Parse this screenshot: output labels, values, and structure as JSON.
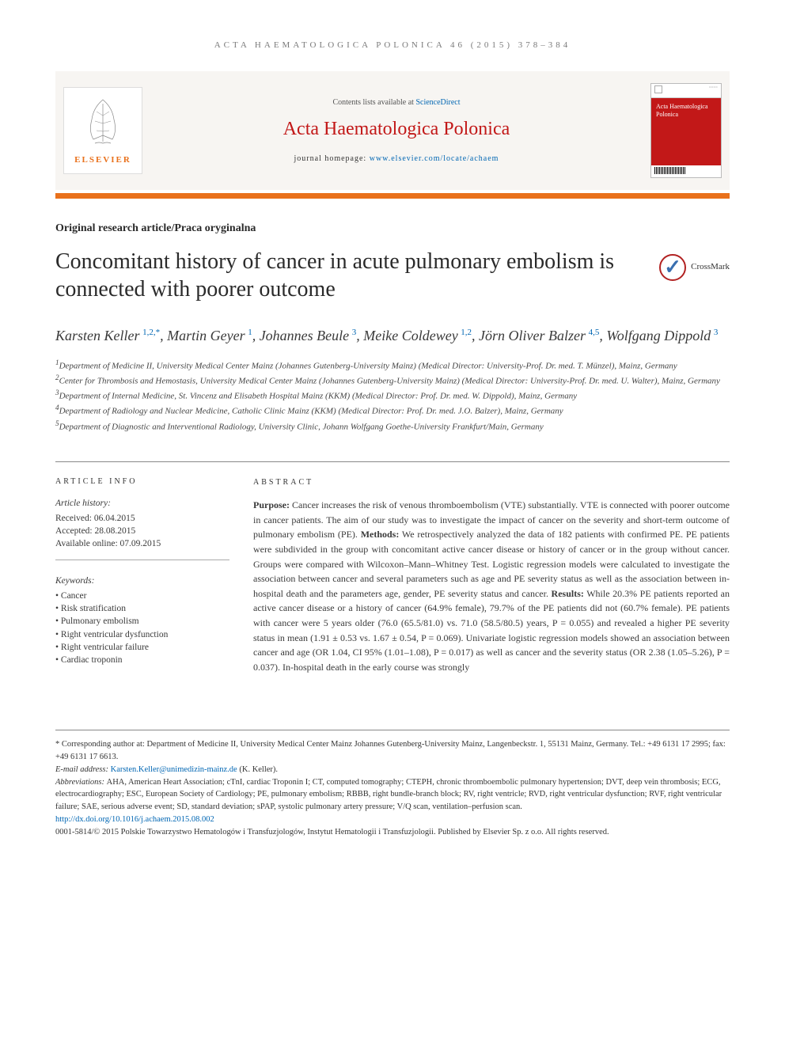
{
  "colors": {
    "accent_orange": "#e9711c",
    "journal_red": "#c21818",
    "link_blue": "#0066b3",
    "cover_bg": "#c21818",
    "crossmark_border": "#b22222",
    "crossmark_check": "#3a6fb0",
    "text_gray": "#3a3a3a"
  },
  "header": {
    "running_head": "ACTA HAEMATOLOGICA POLONICA 46 (2015) 378–384",
    "contents_line_prefix": "Contents lists available at ",
    "contents_link": "ScienceDirect",
    "journal_name": "Acta Haematologica Polonica",
    "homepage_prefix": "journal homepage: ",
    "homepage_link": "www.elsevier.com/locate/achaem",
    "elsevier_label": "ELSEVIER",
    "cover_text": "Acta Haematologica Polonica"
  },
  "article": {
    "section_label": "Original research article/Praca oryginalna",
    "title": "Concomitant history of cancer in acute pulmonary embolism is connected with poorer outcome",
    "crossmark_label": "CrossMark"
  },
  "authors": [
    {
      "name": "Karsten Keller",
      "sup": "1,2,*"
    },
    {
      "name": "Martin Geyer",
      "sup": "1"
    },
    {
      "name": "Johannes Beule",
      "sup": "3"
    },
    {
      "name": "Meike Coldewey",
      "sup": "1,2"
    },
    {
      "name": "Jörn Oliver Balzer",
      "sup": "4,5"
    },
    {
      "name": "Wolfgang Dippold",
      "sup": "3"
    }
  ],
  "affiliations": [
    {
      "idx": "1",
      "text": "Department of Medicine II, University Medical Center Mainz (Johannes Gutenberg-University Mainz) (Medical Director: University-Prof. Dr. med. T. Münzel), Mainz, Germany"
    },
    {
      "idx": "2",
      "text": "Center for Thrombosis and Hemostasis, University Medical Center Mainz (Johannes Gutenberg-University Mainz) (Medical Director: University-Prof. Dr. med. U. Walter), Mainz, Germany"
    },
    {
      "idx": "3",
      "text": "Department of Internal Medicine, St. Vincenz and Elisabeth Hospital Mainz (KKM) (Medical Director: Prof. Dr. med. W. Dippold), Mainz, Germany"
    },
    {
      "idx": "4",
      "text": "Department of Radiology and Nuclear Medicine, Catholic Clinic Mainz (KKM) (Medical Director: Prof. Dr. med. J.O. Balzer), Mainz, Germany"
    },
    {
      "idx": "5",
      "text": "Department of Diagnostic and Interventional Radiology, University Clinic, Johann Wolfgang Goethe-University Frankfurt/Main, Germany"
    }
  ],
  "article_info": {
    "head": "ARTICLE INFO",
    "history_label": "Article history:",
    "received": "Received: 06.04.2015",
    "accepted": "Accepted: 28.08.2015",
    "online": "Available online: 07.09.2015",
    "keywords_label": "Keywords:",
    "keywords": [
      "Cancer",
      "Risk stratification",
      "Pulmonary embolism",
      "Right ventricular dysfunction",
      "Right ventricular failure",
      "Cardiac troponin"
    ]
  },
  "abstract": {
    "head": "ABSTRACT",
    "text": "Purpose: Cancer increases the risk of venous thromboembolism (VTE) substantially. VTE is connected with poorer outcome in cancer patients. The aim of our study was to investigate the impact of cancer on the severity and short-term outcome of pulmonary embolism (PE). Methods: We retrospectively analyzed the data of 182 patients with confirmed PE. PE patients were subdivided in the group with concomitant active cancer disease or history of cancer or in the group without cancer. Groups were compared with Wilcoxon–Mann–Whitney Test. Logistic regression models were calculated to investigate the association between cancer and several parameters such as age and PE severity status as well as the association between in-hospital death and the parameters age, gender, PE severity status and cancer. Results: While 20.3% PE patients reported an active cancer disease or a history of cancer (64.9% female), 79.7% of the PE patients did not (60.7% female). PE patients with cancer were 5 years older (76.0 (65.5/81.0) vs. 71.0 (58.5/80.5) years, P = 0.055) and revealed a higher PE severity status in mean (1.91 ± 0.53 vs. 1.67 ± 0.54, P = 0.069). Univariate logistic regression models showed an association between cancer and age (OR 1.04, CI 95% (1.01–1.08), P = 0.017) as well as cancer and the severity status (OR 2.38 (1.05–5.26), P = 0.037). In-hospital death in the early course was strongly"
  },
  "footer": {
    "corr_text": "* Corresponding author at: Department of Medicine II, University Medical Center Mainz Johannes Gutenberg-University Mainz, Langenbeckstr. 1, 55131 Mainz, Germany. Tel.: +49 6131 17 2995; fax: +49 6131 17 6613.",
    "email_label": "E-mail address: ",
    "email": "Karsten.Keller@unimedizin-mainz.de",
    "email_suffix": " (K. Keller).",
    "abbrev_label": "Abbreviations: ",
    "abbrev_text": "AHA, American Heart Association; cTnI, cardiac Troponin I; CT, computed tomography; CTEPH, chronic thromboembolic pulmonary hypertension; DVT, deep vein thrombosis; ECG, electrocardiography; ESC, European Society of Cardiology; PE, pulmonary embolism; RBBB, right bundle-branch block; RV, right ventricle; RVD, right ventricular dysfunction; RVF, right ventricular failure; SAE, serious adverse event; SD, standard deviation; sPAP, systolic pulmonary artery pressure; V/Q scan, ventilation–perfusion scan.",
    "doi": "http://dx.doi.org/10.1016/j.achaem.2015.08.002",
    "copyright": "0001-5814/© 2015 Polskie Towarzystwo Hematologów i Transfuzjologów, Instytut Hematologii i Transfuzjologii. Published by Elsevier Sp. z o.o. All rights reserved."
  }
}
